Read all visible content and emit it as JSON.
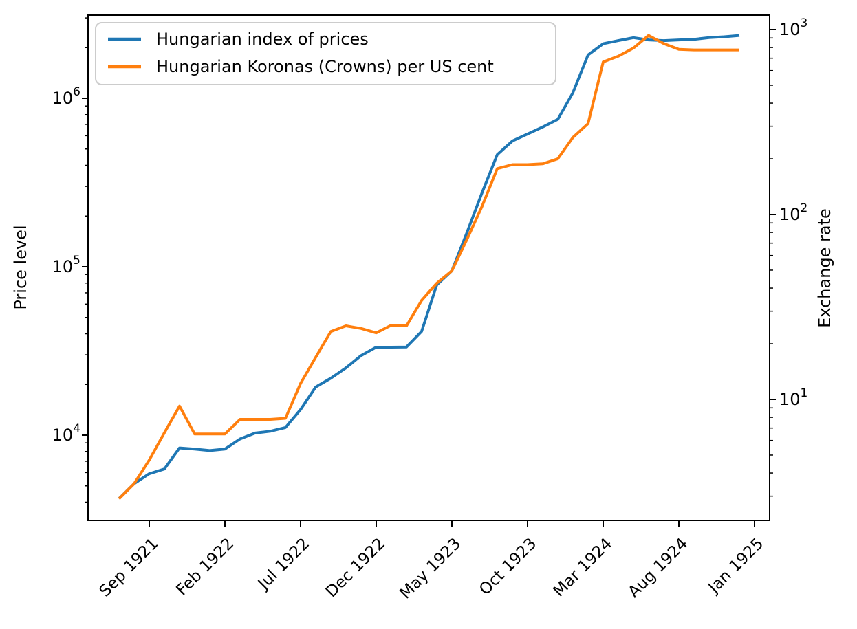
{
  "chart_data": {
    "type": "line",
    "title": "",
    "x_axis": {
      "tick_labels": [
        "Sep 1921",
        "Feb 1922",
        "Jul 1922",
        "Dec 1922",
        "May 1923",
        "Oct 1923",
        "Mar 1924",
        "Aug 1924",
        "Jan 1925"
      ],
      "tick_month_index": [
        2,
        7,
        12,
        17,
        22,
        27,
        32,
        37,
        42
      ],
      "rotation_deg": 45
    },
    "left_axis": {
      "label": "Price level",
      "scale": "log",
      "tick_labels": [
        "10^4",
        "10^5",
        "10^6"
      ],
      "tick_exponents": [
        4,
        5,
        6
      ],
      "approx_range": [
        3100,
        3100000
      ]
    },
    "right_axis": {
      "label": "Exchange rate",
      "scale": "log",
      "tick_labels": [
        "10^1",
        "10^2",
        "10^3"
      ],
      "tick_exponents": [
        1,
        2,
        3
      ],
      "approx_range": [
        2.2,
        1200
      ]
    },
    "legend": {
      "position": "upper left",
      "entries": [
        "Hungarian index of prices",
        "Hungarian Koronas (Crowns) per US cent"
      ]
    },
    "months": [
      "Jul 1921",
      "Aug 1921",
      "Sep 1921",
      "Oct 1921",
      "Nov 1921",
      "Dec 1921",
      "Jan 1922",
      "Feb 1922",
      "Mar 1922",
      "Apr 1922",
      "May 1922",
      "Jun 1922",
      "Jul 1922",
      "Aug 1922",
      "Sep 1922",
      "Oct 1922",
      "Nov 1922",
      "Dec 1922",
      "Jan 1923",
      "Feb 1923",
      "Mar 1923",
      "Apr 1923",
      "May 1923",
      "Jun 1923",
      "Jul 1923",
      "Aug 1923",
      "Sep 1923",
      "Oct 1923",
      "Nov 1923",
      "Dec 1923",
      "Jan 1924",
      "Feb 1924",
      "Mar 1924",
      "Apr 1924",
      "May 1924",
      "Jun 1924",
      "Jul 1924",
      "Aug 1924",
      "Sep 1924",
      "Oct 1924",
      "Nov 1924",
      "Dec 1924"
    ],
    "series": [
      {
        "name": "Hungarian index of prices",
        "color": "#1f77b4",
        "axis": "left",
        "values": [
          4200,
          5150,
          5900,
          6300,
          8400,
          8270,
          8100,
          8270,
          9500,
          10300,
          10550,
          11100,
          14200,
          19300,
          21800,
          25100,
          29700,
          33300,
          33300,
          33400,
          41300,
          78000,
          94600,
          160000,
          276000,
          463000,
          558000,
          614000,
          675000,
          750000,
          1080000,
          1810000,
          2110000,
          2200000,
          2290000,
          2220000,
          2200000,
          2220000,
          2240000,
          2290000,
          2320000,
          2360000
        ]
      },
      {
        "name": "Hungarian Koronas (Crowns) per US cent",
        "color": "#ff7f0e",
        "axis": "right",
        "values": [
          2.9,
          3.5,
          4.7,
          6.6,
          9.2,
          6.5,
          6.5,
          6.5,
          7.8,
          7.8,
          7.8,
          7.9,
          12.2,
          16.9,
          23.3,
          25.0,
          24.2,
          22.9,
          25.2,
          25.0,
          34.3,
          42.5,
          49.6,
          73.5,
          111,
          177,
          186,
          186,
          188,
          200,
          261,
          310,
          668,
          718,
          794,
          929,
          840,
          782,
          776,
          776,
          776,
          776
        ]
      }
    ]
  }
}
